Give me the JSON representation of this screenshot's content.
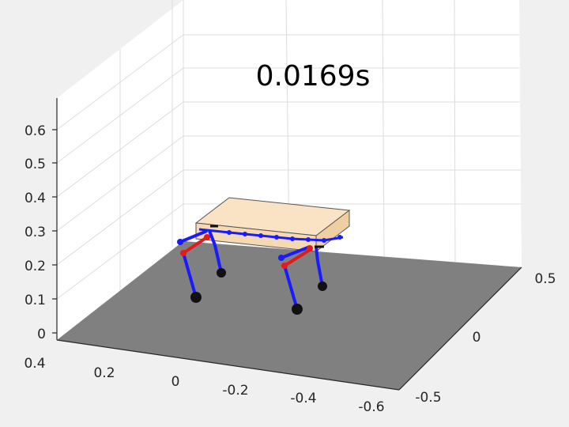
{
  "figure": {
    "title": "0.0169s",
    "z_ticks": [
      "0",
      "0.1",
      "0.2",
      "0.3",
      "0.4",
      "0.5",
      "0.6"
    ],
    "x_ticks": [
      "0.4",
      "0.2",
      "0",
      "-0.2",
      "-0.4",
      "-0.6"
    ],
    "y_ticks": [
      "-0.5",
      "0",
      "0.5"
    ]
  },
  "colors": {
    "background": "#f0f0f0",
    "floor": "#808080",
    "grid": "#dcdcdc",
    "body": "#f9e3c4",
    "leg_blue": "#1a1aff",
    "leg_red": "#e31a1c",
    "foot": "#111111"
  }
}
